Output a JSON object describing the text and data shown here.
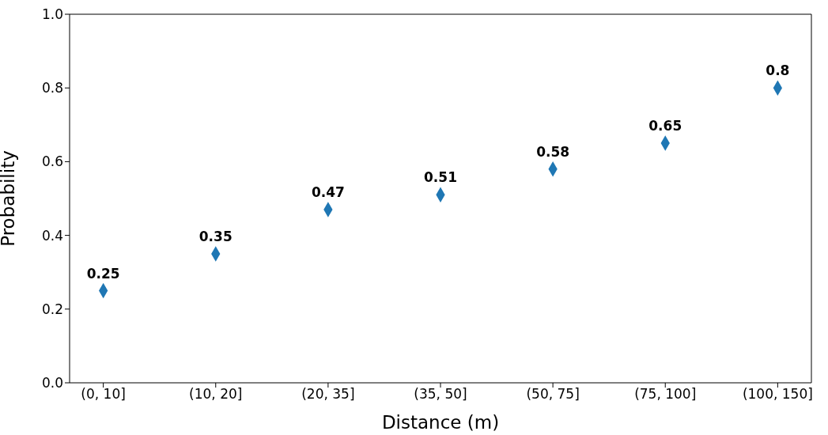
{
  "chart_data": {
    "type": "scatter",
    "xlabel": "Distance (m)",
    "ylabel": "Probability",
    "categories": [
      "(0, 10]",
      "(10, 20]",
      "(20, 35]",
      "(35, 50]",
      "(50, 75]",
      "(75, 100]",
      "(100, 150]"
    ],
    "values": [
      0.25,
      0.35,
      0.47,
      0.51,
      0.58,
      0.65,
      0.8
    ],
    "color": "#1f77b4",
    "marker": "diamond",
    "data_labels": true,
    "ylim": [
      0,
      1
    ],
    "yticks": [
      {
        "value": 0,
        "label": "0.0"
      },
      0.2,
      0.4,
      0.6,
      0.8,
      {
        "value": 1,
        "label": "1.0"
      }
    ],
    "grid": false,
    "legend": false
  }
}
